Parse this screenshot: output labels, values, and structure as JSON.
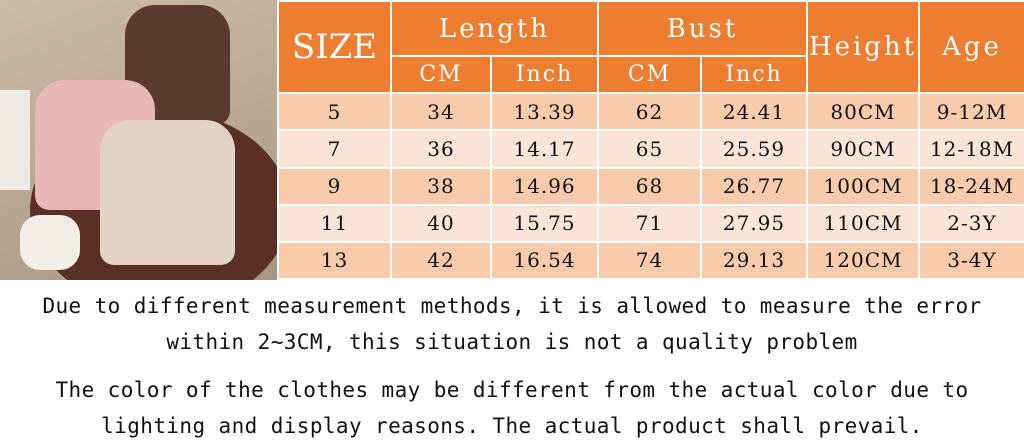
{
  "colors": {
    "header": "#ED7D31",
    "row_odd": "#F8CBAD",
    "row_even": "#FBE5D6"
  },
  "table": {
    "size_label": "SIZE",
    "length_label": "Length",
    "bust_label": "Bust",
    "height_label": "Height",
    "age_label": "Age",
    "cm": "CM",
    "inch": "Inch",
    "rows": [
      {
        "size": "5",
        "len_cm": "34",
        "len_in": "13.39",
        "bust_cm": "62",
        "bust_in": "24.41",
        "height": "80CM",
        "age": "9-12M"
      },
      {
        "size": "7",
        "len_cm": "36",
        "len_in": "14.17",
        "bust_cm": "65",
        "bust_in": "25.59",
        "height": "90CM",
        "age": "12-18M"
      },
      {
        "size": "9",
        "len_cm": "38",
        "len_in": "14.96",
        "bust_cm": "68",
        "bust_in": "26.77",
        "height": "100CM",
        "age": "18-24M"
      },
      {
        "size": "11",
        "len_cm": "40",
        "len_in": "15.75",
        "bust_cm": "71",
        "bust_in": "27.95",
        "height": "110CM",
        "age": "2-3Y"
      },
      {
        "size": "13",
        "len_cm": "42",
        "len_in": "16.54",
        "bust_cm": "74",
        "bust_in": "29.13",
        "height": "120CM",
        "age": "3-4Y"
      }
    ]
  },
  "notes": [
    "Due to different measurement methods, it is allowed to measure the error",
    "within 2~3CM, this situation is not a quality problem",
    "The color of the clothes may be different from the actual color due to",
    "lighting and display reasons. The actual product shall prevail."
  ]
}
